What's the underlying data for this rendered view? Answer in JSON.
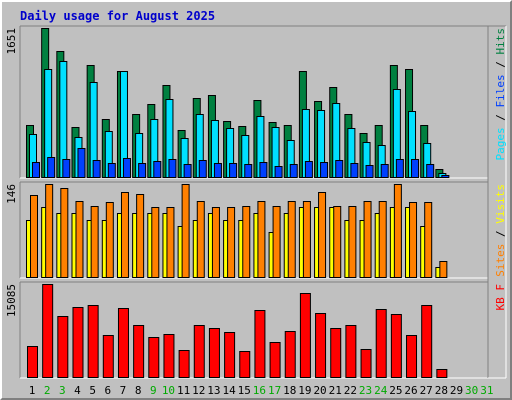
{
  "title": "Daily usage for August 2025",
  "colors": {
    "hits": "#008040",
    "files": "#00e0ff",
    "pages": "#0040ff",
    "visits": "#ffff00",
    "sites": "#ff8000",
    "kbytes": "#ff0000",
    "weekend_label": "#00aa00",
    "weekday_label": "#000000"
  },
  "chart_data": [
    {
      "type": "bar",
      "panel": "hits-files-pages",
      "ylim": [
        0,
        1651
      ],
      "yaxis_max_label": "1651",
      "legend": [
        "Hits",
        "Files",
        "Pages"
      ],
      "categories": [
        "1",
        "2",
        "3",
        "4",
        "5",
        "6",
        "7",
        "8",
        "9",
        "10",
        "11",
        "12",
        "13",
        "14",
        "15",
        "16",
        "17",
        "18",
        "19",
        "20",
        "21",
        "22",
        "23",
        "24",
        "25",
        "26",
        "27",
        "28",
        "29",
        "30",
        "31"
      ],
      "weekend_days": [
        2,
        3,
        9,
        10,
        16,
        17,
        23,
        24,
        30,
        31
      ],
      "series": [
        {
          "name": "Hits",
          "values": [
            578,
            1651,
            1396,
            552,
            1240,
            648,
            1169,
            697,
            807,
            1020,
            524,
            878,
            906,
            621,
            563,
            854,
            606,
            575,
            1177,
            844,
            1000,
            694,
            491,
            579,
            1240,
            1195,
            571,
            86,
            0,
            0,
            0
          ]
        },
        {
          "name": "Files",
          "values": [
            476,
            1195,
            1289,
            445,
            1057,
            510,
            1172,
            483,
            645,
            866,
            431,
            700,
            636,
            542,
            465,
            675,
            559,
            410,
            756,
            745,
            818,
            540,
            387,
            355,
            970,
            726,
            380,
            46,
            0,
            0,
            0
          ]
        },
        {
          "name": "Pages",
          "values": [
            165,
            220,
            195,
            318,
            185,
            150,
            210,
            150,
            175,
            200,
            140,
            190,
            160,
            150,
            140,
            170,
            120,
            140,
            180,
            165,
            190,
            150,
            130,
            140,
            195,
            200,
            140,
            20,
            0,
            0,
            0
          ]
        }
      ]
    },
    {
      "type": "bar",
      "panel": "sites-visits",
      "ylim": [
        0,
        146
      ],
      "yaxis_max_label": "146",
      "legend": [
        "Sites",
        "Visits"
      ],
      "categories": [
        "1",
        "2",
        "3",
        "4",
        "5",
        "6",
        "7",
        "8",
        "9",
        "10",
        "11",
        "12",
        "13",
        "14",
        "15",
        "16",
        "17",
        "18",
        "19",
        "20",
        "21",
        "22",
        "23",
        "24",
        "25",
        "26",
        "27",
        "28",
        "29",
        "30",
        "31"
      ],
      "series": [
        {
          "name": "Sites",
          "values": [
            128,
            146,
            140,
            120,
            112,
            118,
            133,
            131,
            110,
            110,
            146,
            120,
            110,
            110,
            112,
            120,
            112,
            120,
            120,
            133,
            111,
            111,
            120,
            120,
            146,
            117,
            118,
            25,
            0,
            0,
            0
          ]
        },
        {
          "name": "Visits",
          "values": [
            90,
            110,
            100,
            100,
            90,
            90,
            100,
            100,
            100,
            100,
            80,
            90,
            100,
            90,
            90,
            100,
            70,
            100,
            110,
            110,
            110,
            90,
            90,
            100,
            110,
            110,
            80,
            15,
            0,
            0,
            0
          ]
        }
      ]
    },
    {
      "type": "bar",
      "panel": "kbytes",
      "ylim": [
        0,
        15085
      ],
      "yaxis_max_label": "15085",
      "legend": [
        "KB F"
      ],
      "categories": [
        "1",
        "2",
        "3",
        "4",
        "5",
        "6",
        "7",
        "8",
        "9",
        "10",
        "11",
        "12",
        "13",
        "14",
        "15",
        "16",
        "17",
        "18",
        "19",
        "20",
        "21",
        "22",
        "23",
        "24",
        "25",
        "26",
        "27",
        "28",
        "29",
        "30",
        "31"
      ],
      "series": [
        {
          "name": "KB F",
          "values": [
            5000,
            15085,
            9900,
            11400,
            11600,
            6800,
            11200,
            8400,
            6500,
            7000,
            4300,
            8400,
            8000,
            7300,
            4200,
            10900,
            5600,
            7400,
            13600,
            10300,
            8000,
            8500,
            4600,
            11000,
            10200,
            6800,
            11700,
            1300,
            0,
            0,
            0
          ]
        }
      ]
    }
  ]
}
